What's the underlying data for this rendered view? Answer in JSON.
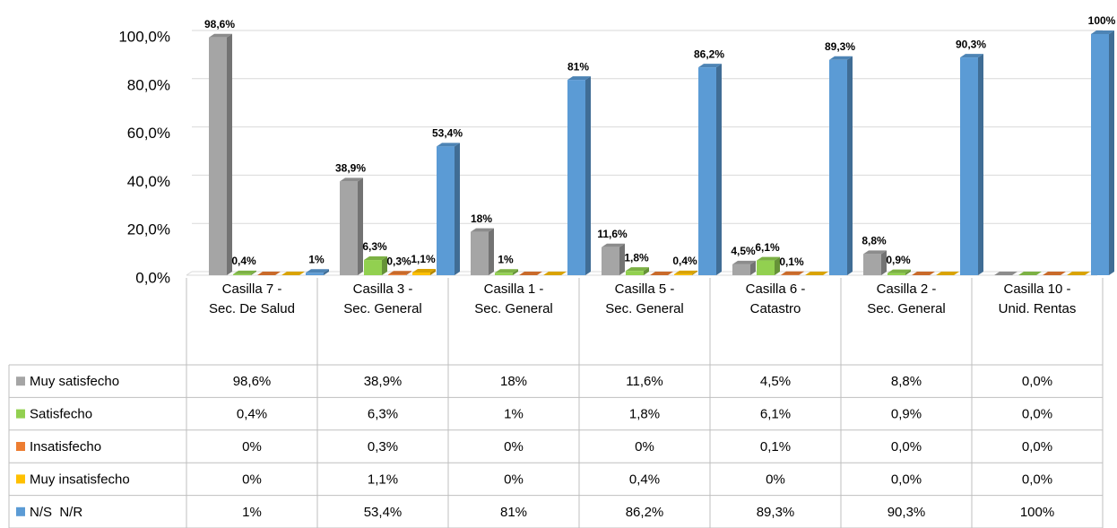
{
  "chart_data": {
    "type": "bar3d",
    "categories": [
      "Casilla 7 - Sec. De Salud",
      "Casilla 3 - Sec. General",
      "Casilla 1 - Sec. General",
      "Casilla 5 - Sec. General",
      "Casilla 6 - Catastro",
      "Casilla 2 - Sec. General",
      "Casilla 10 - Unid. Rentas"
    ],
    "series": [
      {
        "name": "Muy satisfecho",
        "color": "#a5a5a5",
        "values": [
          98.6,
          38.9,
          18,
          11.6,
          4.5,
          8.8,
          0
        ],
        "value_labels": [
          "98,6%",
          "38,9%",
          "18%",
          "11,6%",
          "4,5%",
          "8,8%",
          "0,0%"
        ]
      },
      {
        "name": "Satisfecho",
        "color": "#92d050",
        "values": [
          0.4,
          6.3,
          1,
          1.8,
          6.1,
          0.9,
          0
        ],
        "value_labels": [
          "0,4%",
          "6,3%",
          "1%",
          "1,8%",
          "6,1%",
          "0,9%",
          "0,0%"
        ]
      },
      {
        "name": "Insatisfecho",
        "color": "#ed7d31",
        "values": [
          0,
          0.3,
          0,
          0,
          0.1,
          0,
          0
        ],
        "value_labels": [
          "0%",
          "0,3%",
          "0%",
          "0%",
          "0,1%",
          "0,0%",
          "0,0%"
        ]
      },
      {
        "name": "Muy insatisfecho",
        "color": "#ffc000",
        "values": [
          0,
          1.1,
          0,
          0.4,
          0,
          0,
          0
        ],
        "value_labels": [
          "0%",
          "1,1%",
          "0%",
          "0,4%",
          "0%",
          "0,0%",
          "0,0%"
        ]
      },
      {
        "name": "N/S  N/R",
        "color": "#5b9bd5",
        "values": [
          1,
          53.4,
          81,
          86.2,
          89.3,
          90.3,
          100
        ],
        "value_labels": [
          "1%",
          "53,4%",
          "81%",
          "86,2%",
          "89,3%",
          "90,3%",
          "100%"
        ]
      }
    ],
    "ylim": [
      0,
      100
    ],
    "yticks": [
      {
        "value": 0,
        "label": "0,0%"
      },
      {
        "value": 20,
        "label": "20,0%"
      },
      {
        "value": 40,
        "label": "40,0%"
      },
      {
        "value": 60,
        "label": "60,0%"
      },
      {
        "value": 80,
        "label": "80,0%"
      },
      {
        "value": 100,
        "label": "100,0%"
      }
    ],
    "grid": true
  }
}
